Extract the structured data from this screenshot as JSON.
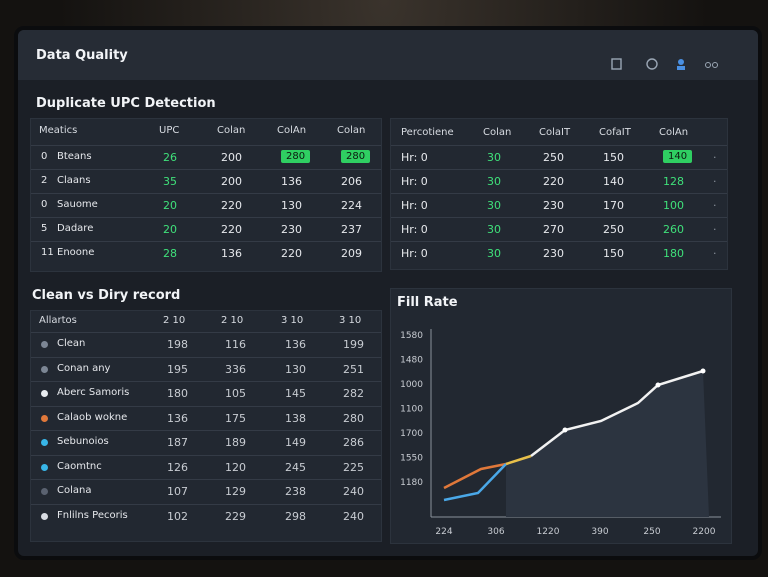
{
  "header": {
    "title": "Data Quality"
  },
  "duplicate": {
    "title": "Duplicate UPC Detection",
    "left": {
      "columns": [
        "Meatics",
        "UPC",
        "Colan",
        "ColAn",
        "Colan"
      ],
      "rows": [
        [
          "0",
          "Bteans",
          26,
          200,
          280,
          280
        ],
        [
          "2",
          "Claans",
          35,
          200,
          136,
          206
        ],
        [
          "0",
          "Sauome",
          20,
          220,
          130,
          224
        ],
        [
          "5",
          "Dadare",
          20,
          220,
          230,
          237
        ],
        [
          "11",
          "Enoone",
          28,
          136,
          220,
          209
        ]
      ]
    },
    "right": {
      "columns": [
        "Percotiene",
        "Colan",
        "ColaIT",
        "CofaIT",
        "ColAn"
      ],
      "rows": [
        [
          "Hr: 0",
          30,
          250,
          150,
          140
        ],
        [
          "Hr: 0",
          30,
          220,
          140,
          128
        ],
        [
          "Hr: 0",
          30,
          230,
          170,
          100
        ],
        [
          "Hr: 0",
          30,
          270,
          250,
          260
        ],
        [
          "Hr: 0",
          30,
          230,
          150,
          180
        ]
      ]
    }
  },
  "clean": {
    "title": "Clean vs Diry record",
    "columns": [
      "Allartos",
      "2 10",
      "2 10",
      "3 10",
      "3 10"
    ],
    "rows": [
      [
        "Clean",
        198,
        116,
        136,
        199
      ],
      [
        "Conan any",
        195,
        336,
        130,
        251
      ],
      [
        "Aberc Samoris",
        180,
        105,
        145,
        282
      ],
      [
        "Calaob wokne",
        136,
        175,
        138,
        280
      ],
      [
        "Sebunoios",
        187,
        189,
        149,
        286
      ],
      [
        "Caomtnc",
        126,
        120,
        245,
        225
      ],
      [
        "Colana",
        107,
        129,
        238,
        240
      ],
      [
        "Fnlilns Pecoris",
        102,
        229,
        298,
        240
      ]
    ]
  },
  "fill": {
    "title": "Fill Rate",
    "y_labels": [
      "1580",
      "1480",
      "1000",
      "1100",
      "1700",
      "1550",
      "1180"
    ],
    "x_labels": [
      "224",
      "306",
      "1220",
      "390",
      "250",
      "2200"
    ]
  }
}
